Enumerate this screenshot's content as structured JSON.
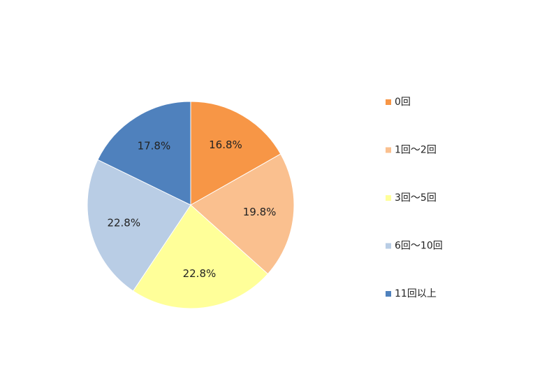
{
  "chart_data": {
    "type": "pie",
    "categories": [
      "0回",
      "1回～2回",
      "3回～5回",
      "6回～10回",
      "11回以上"
    ],
    "values": [
      16.8,
      19.8,
      22.8,
      22.8,
      17.8
    ],
    "value_labels": [
      "16.8%",
      "19.8%",
      "22.8%",
      "22.8%",
      "17.8%"
    ],
    "colors": [
      "#f79646",
      "#fac08f",
      "#ffff99",
      "#b9cde5",
      "#4f81bd"
    ],
    "legend": "right"
  }
}
